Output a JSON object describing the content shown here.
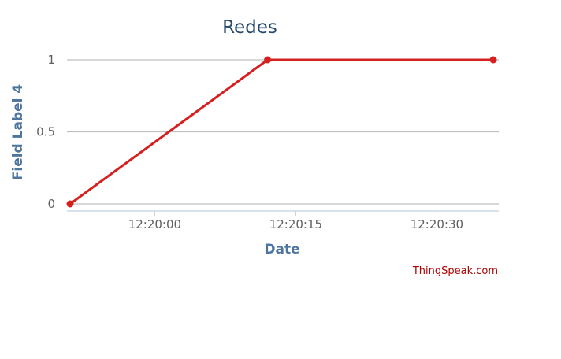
{
  "chart_data": {
    "type": "line",
    "title": "Redes",
    "xlabel": "Date",
    "ylabel": "Field Label 4",
    "x_tick_labels": [
      "12:20:00",
      "12:20:15",
      "12:20:30"
    ],
    "y_tick_labels": [
      "0",
      "0.5",
      "1"
    ],
    "ylim": [
      0,
      1
    ],
    "xlim": [
      "12:19:51",
      "12:20:36"
    ],
    "grid": true,
    "series": [
      {
        "color": "#d62020",
        "x": [
          "12:19:51",
          "12:20:12",
          "12:20:36"
        ],
        "values": [
          0,
          1,
          1
        ]
      }
    ],
    "credits": "ThingSpeak.com"
  }
}
